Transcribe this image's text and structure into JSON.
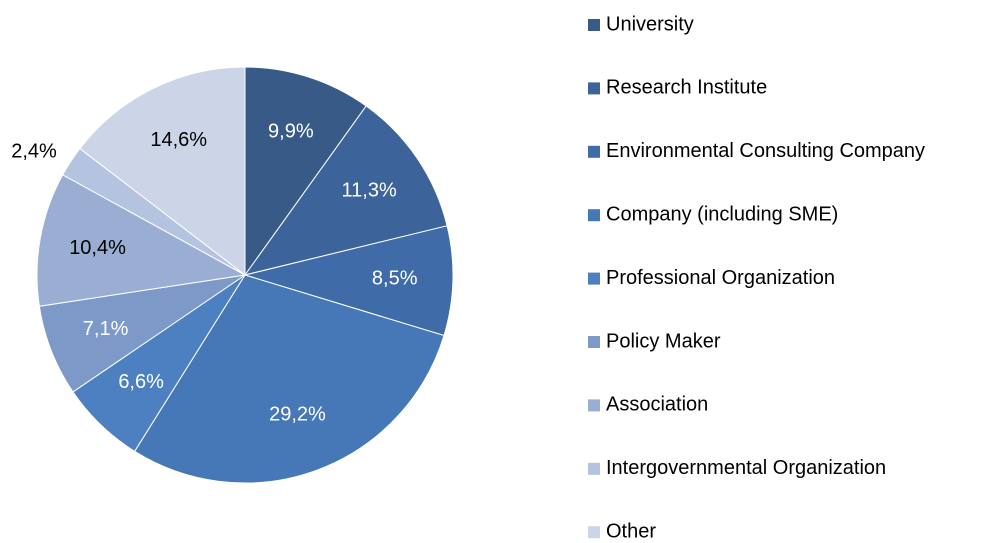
{
  "chart_data": {
    "type": "pie",
    "categories": [
      "University",
      "Research Institute",
      "Environmental Consulting Company",
      "Company (including SME)",
      "Professional Organization",
      "Policy Maker",
      "Association",
      "Intergovernmental Organization",
      "Other"
    ],
    "values": [
      9.9,
      11.3,
      8.5,
      29.2,
      6.6,
      7.1,
      10.4,
      2.4,
      14.6
    ],
    "value_labels": [
      "9,9%",
      "11,3%",
      "8,5%",
      "29,2%",
      "6,6%",
      "7,1%",
      "10,4%",
      "2,4%",
      "14,6%"
    ],
    "colors": [
      "#375a87",
      "#3d649a",
      "#3f6ca8",
      "#4677b7",
      "#4c80c0",
      "#7d99c8",
      "#9aaed4",
      "#b4c3e0",
      "#ccd5e8"
    ],
    "legend": "right"
  }
}
